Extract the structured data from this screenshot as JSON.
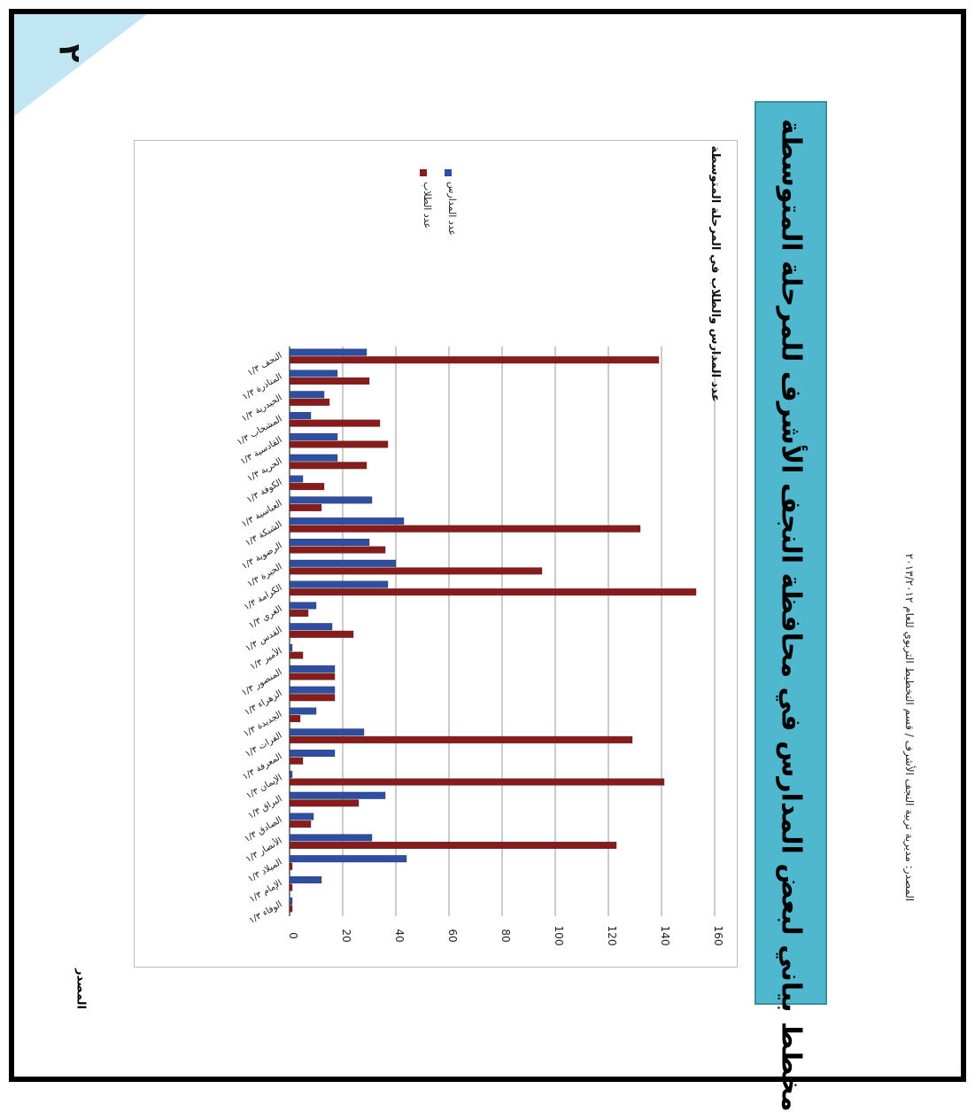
{
  "page": {
    "corner_number": "٢",
    "banner_title": "مخطط بياني لبعض المدارس في محافظة النجف الأشرف للمرحلة المتوسطة",
    "footer_text": "المصدر: مديرية تربية النجف الأشرف / قسم التخطيط التربوي للعام ٢٠١٣/٢٠١٢",
    "side_label": "المصدر",
    "chart_title": "عدد المدارس والطلاب في المرحلة المتوسطة"
  },
  "colors": {
    "series_a": "#2e4ea6",
    "series_b": "#8b1a1a",
    "banner": "#4fb8cf",
    "corner": "#bfe6f2"
  },
  "chart_data": {
    "type": "bar",
    "orientation": "horizontal",
    "title": "عدد المدارس والطلاب في المرحلة المتوسطة",
    "xlim": [
      0,
      160
    ],
    "ticks": [
      0,
      20,
      40,
      60,
      80,
      100,
      120,
      140,
      160
    ],
    "grid": true,
    "legend_position": "top-right",
    "categories": [
      "النجف ١/٣",
      "المناذرة ١/٣",
      "الحيدرية ١/٣",
      "المشخاب ١/٣",
      "القادسية ١/٣",
      "الحرية ١/٣",
      "الكوفة ١/٣",
      "العباسية ١/٣",
      "الشبكة ١/٣",
      "الرضوية ١/٣",
      "الحيرة ١/٣",
      "الكرامة ١/٣",
      "الغري ١/٣",
      "القدس ١/٣",
      "الأمير ١/٣",
      "المنصور ١/٣",
      "الزهراء ١/٣",
      "الجديدة ١/٣",
      "الفرات ١/٣",
      "المعرفة ١/٣",
      "الإيمان ١/٣",
      "البراق ١/٣",
      "الصادق ١/٣",
      "الأنصار ١/٣",
      "الميلاد ١/٣",
      "الإمام ١/٣",
      "الوفاء ١/٣"
    ],
    "series": [
      {
        "name": "عدد المدارس",
        "color": "#2e4ea6",
        "values": [
          29,
          18,
          13,
          8,
          18,
          18,
          5,
          31,
          43,
          30,
          40,
          37,
          10,
          16,
          1,
          17,
          17,
          10,
          28,
          17,
          1,
          36,
          9,
          31,
          44,
          12,
          1
        ]
      },
      {
        "name": "عدد الطلاب",
        "color": "#8b1a1a",
        "values": [
          139,
          30,
          15,
          34,
          37,
          29,
          13,
          12,
          132,
          36,
          95,
          153,
          7,
          24,
          5,
          17,
          17,
          4,
          129,
          5,
          141,
          26,
          8,
          123,
          1,
          1,
          1
        ]
      }
    ]
  }
}
